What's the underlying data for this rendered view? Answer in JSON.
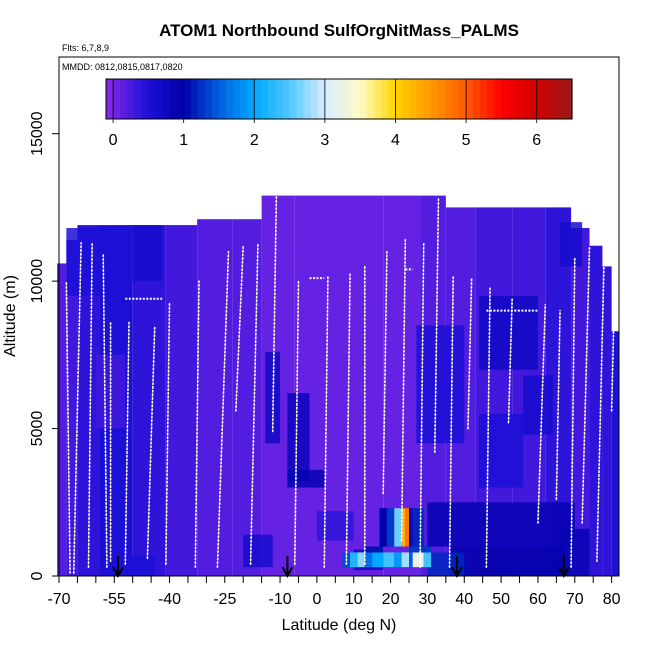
{
  "chart_data": {
    "type": "heatmap",
    "title": "ATOM1 Northbound SulfOrgNitMass_PALMS",
    "flights_note": "Flts: 6,7,8,9",
    "dates_note": "MMDD: 0812,0815,0817,0820",
    "xlabel": "Latitude (deg N)",
    "ylabel": "Altitude (m)",
    "xlim": [
      -70,
      82
    ],
    "ylim": [
      0,
      17600
    ],
    "x_ticks": [
      -70,
      -55,
      -40,
      -25,
      -10,
      0,
      10,
      20,
      30,
      40,
      50,
      60,
      70,
      80
    ],
    "x_ticks_unlabeled": [
      -65,
      -60,
      -50,
      -45,
      -35,
      -30,
      -20,
      -15,
      -5,
      5,
      15,
      25,
      35,
      45,
      55,
      65,
      75
    ],
    "y_ticks": [
      0,
      5000,
      10000,
      15000
    ],
    "colorbar": {
      "ticks": [
        0,
        1,
        2,
        3,
        4,
        5,
        6
      ],
      "range": [
        -0.1,
        6.5
      ],
      "stops": [
        {
          "v": -0.1,
          "c": "#8a2be8"
        },
        {
          "v": 0.5,
          "c": "#1c0fd6"
        },
        {
          "v": 1.0,
          "c": "#0000a8"
        },
        {
          "v": 1.5,
          "c": "#0060e0"
        },
        {
          "v": 2.0,
          "c": "#00a8ff"
        },
        {
          "v": 2.5,
          "c": "#50c8ff"
        },
        {
          "v": 3.0,
          "c": "#d8ecff"
        },
        {
          "v": 3.5,
          "c": "#fffcc8"
        },
        {
          "v": 4.0,
          "c": "#ffd400"
        },
        {
          "v": 4.5,
          "c": "#ff9800"
        },
        {
          "v": 5.0,
          "c": "#ff5a00"
        },
        {
          "v": 5.5,
          "c": "#ff0000"
        },
        {
          "v": 6.0,
          "c": "#d00000"
        },
        {
          "v": 6.5,
          "c": "#9a1a1a"
        }
      ]
    },
    "profile_tops": [
      {
        "lat": -69,
        "top": 10600,
        "v": 0.2
      },
      {
        "lat": -67,
        "top": 11400,
        "v": 0.3
      },
      {
        "lat": -63,
        "top": 11900,
        "v": 0.4
      },
      {
        "lat": -55,
        "top": 11900,
        "v": 0.5
      },
      {
        "lat": -45,
        "top": 11900,
        "v": 0.4
      },
      {
        "lat": -37,
        "top": 11900,
        "v": 0.3
      },
      {
        "lat": -28,
        "top": 12100,
        "v": 0.2
      },
      {
        "lat": -18,
        "top": 12100,
        "v": 0.2
      },
      {
        "lat": -12,
        "top": 12900,
        "v": 0.1
      },
      {
        "lat": 0,
        "top": 12900,
        "v": 0.1
      },
      {
        "lat": 12,
        "top": 12900,
        "v": 0.1
      },
      {
        "lat": 24,
        "top": 12900,
        "v": 0.1
      },
      {
        "lat": 32,
        "top": 12900,
        "v": 0.2
      },
      {
        "lat": 38,
        "top": 12500,
        "v": 0.2
      },
      {
        "lat": 48,
        "top": 12500,
        "v": 0.3
      },
      {
        "lat": 58,
        "top": 12500,
        "v": 0.3
      },
      {
        "lat": 66,
        "top": 12500,
        "v": 0.4
      },
      {
        "lat": 72,
        "top": 11800,
        "v": 0.3
      },
      {
        "lat": 76,
        "top": 11200,
        "v": 0.4
      },
      {
        "lat": 79,
        "top": 10500,
        "v": 0.4
      },
      {
        "lat": 81,
        "top": 8300,
        "v": 0.5
      }
    ],
    "patches": [
      {
        "lat0": -68,
        "lat1": -56,
        "alt0": 9500,
        "alt1": 11800,
        "v": 0.5
      },
      {
        "lat0": -50,
        "lat1": -42,
        "alt0": 10000,
        "alt1": 11900,
        "v": 0.6
      },
      {
        "lat0": -60,
        "lat1": -52,
        "alt0": 5000,
        "alt1": 7500,
        "v": 0.3
      },
      {
        "lat0": -14,
        "lat1": -10,
        "alt0": 4500,
        "alt1": 7600,
        "v": 0.7
      },
      {
        "lat0": -8,
        "lat1": -2,
        "alt0": 3200,
        "alt1": 6200,
        "v": 0.8
      },
      {
        "lat0": -8,
        "lat1": 2,
        "alt0": 3000,
        "alt1": 3600,
        "v": 0.9
      },
      {
        "lat0": 27,
        "lat1": 40,
        "alt0": 4500,
        "alt1": 8500,
        "v": 0.5
      },
      {
        "lat0": 44,
        "lat1": 60,
        "alt0": 7000,
        "alt1": 9500,
        "v": 0.7
      },
      {
        "lat0": 44,
        "lat1": 56,
        "alt0": 3000,
        "alt1": 5500,
        "v": 0.5
      },
      {
        "lat0": 56,
        "lat1": 64,
        "alt0": 4800,
        "alt1": 6800,
        "v": 0.6
      },
      {
        "lat0": 66,
        "lat1": 72,
        "alt0": 10500,
        "alt1": 12000,
        "v": 0.6
      },
      {
        "lat0": 30,
        "lat1": 70,
        "alt0": 1000,
        "alt1": 2500,
        "v": 0.9
      },
      {
        "lat0": 36,
        "lat1": 68,
        "alt0": 0,
        "alt1": 1000,
        "v": 1.0
      },
      {
        "lat0": 66,
        "lat1": 74,
        "alt0": 0,
        "alt1": 1600,
        "v": 0.9
      },
      {
        "lat0": -52,
        "lat1": -44,
        "alt0": 0,
        "alt1": 700,
        "v": 0.5
      },
      {
        "lat0": -20,
        "lat1": -12,
        "alt0": 300,
        "alt1": 1400,
        "v": 0.6
      },
      {
        "lat0": 10,
        "lat1": 18,
        "alt0": 200,
        "alt1": 900,
        "v": 0.7
      },
      {
        "lat0": 0,
        "lat1": 10,
        "alt0": 1200,
        "alt1": 2200,
        "v": 0.4
      },
      {
        "lat0": 30,
        "lat1": 40,
        "alt0": 0,
        "alt1": 800,
        "v": 1.2
      }
    ],
    "hotspot": [
      {
        "lat0": 17,
        "lat1": 19,
        "alt0": 1000,
        "alt1": 2300,
        "v": 1.0
      },
      {
        "lat0": 19,
        "lat1": 21,
        "alt0": 1000,
        "alt1": 2300,
        "v": 1.3
      },
      {
        "lat0": 21,
        "lat1": 23,
        "alt0": 1000,
        "alt1": 2300,
        "v": 2.6
      },
      {
        "lat0": 23,
        "lat1": 24,
        "alt0": 1000,
        "alt1": 2300,
        "v": 4.3
      },
      {
        "lat0": 24,
        "lat1": 25,
        "alt0": 1000,
        "alt1": 2300,
        "v": 4.8
      },
      {
        "lat0": 25,
        "lat1": 26,
        "alt0": 1000,
        "alt1": 2300,
        "v": 0.8
      },
      {
        "lat0": 26,
        "lat1": 29,
        "alt0": 1000,
        "alt1": 2300,
        "v": 1.2
      },
      {
        "lat0": 7,
        "lat1": 9,
        "alt0": 300,
        "alt1": 800,
        "v": 1.4
      },
      {
        "lat0": 9,
        "lat1": 11,
        "alt0": 300,
        "alt1": 800,
        "v": 2.2
      },
      {
        "lat0": 11,
        "lat1": 13,
        "alt0": 300,
        "alt1": 800,
        "v": 2.7
      },
      {
        "lat0": 13,
        "lat1": 15,
        "alt0": 300,
        "alt1": 800,
        "v": 1.6
      },
      {
        "lat0": 15,
        "lat1": 18,
        "alt0": 300,
        "alt1": 800,
        "v": 2.0
      },
      {
        "lat0": 18,
        "lat1": 21,
        "alt0": 300,
        "alt1": 800,
        "v": 2.4
      },
      {
        "lat0": 21,
        "lat1": 23,
        "alt0": 300,
        "alt1": 800,
        "v": 1.9
      },
      {
        "lat0": 23,
        "lat1": 25,
        "alt0": 300,
        "alt1": 800,
        "v": 2.8
      },
      {
        "lat0": 25,
        "lat1": 26,
        "alt0": 300,
        "alt1": 800,
        "v": 1.5
      },
      {
        "lat0": 26,
        "lat1": 29,
        "alt0": 300,
        "alt1": 800,
        "v": 3.2
      },
      {
        "lat0": 29,
        "lat1": 31,
        "alt0": 300,
        "alt1": 800,
        "v": 2.4
      },
      {
        "lat0": 13,
        "lat1": 18,
        "alt0": 800,
        "alt1": 1000,
        "v": 1.1
      },
      {
        "lat0": 25,
        "lat1": 31,
        "alt0": 800,
        "alt1": 1000,
        "v": 1.3
      }
    ],
    "flight_tracks": [
      {
        "lat_bottom": -67,
        "lat_top": -68,
        "alt_bottom": 100,
        "alt_top": 10000
      },
      {
        "lat_bottom": -66,
        "lat_top": -64,
        "alt_bottom": 100,
        "alt_top": 11300
      },
      {
        "lat_bottom": -62,
        "lat_top": -61,
        "alt_bottom": 300,
        "alt_top": 11300
      },
      {
        "lat_bottom": -57,
        "lat_top": -58,
        "alt_bottom": 300,
        "alt_top": 10900
      },
      {
        "lat_bottom": -56,
        "lat_top": -56,
        "alt_bottom": 500,
        "alt_top": 8600
      },
      {
        "lat_bottom": -52,
        "lat_top": -51,
        "alt_bottom": 400,
        "alt_top": 8600
      },
      {
        "lat_bottom": -46,
        "lat_top": -44,
        "alt_bottom": 600,
        "alt_top": 8500
      },
      {
        "lat_bottom": -41,
        "lat_top": -40,
        "alt_bottom": 400,
        "alt_top": 9300
      },
      {
        "lat_bottom": -33,
        "lat_top": -32,
        "alt_bottom": 300,
        "alt_top": 10000
      },
      {
        "lat_bottom": -27,
        "lat_top": -24,
        "alt_bottom": 300,
        "alt_top": 11000
      },
      {
        "lat_bottom": -22,
        "lat_top": -20,
        "alt_bottom": 5600,
        "alt_top": 11200
      },
      {
        "lat_bottom": -18,
        "lat_top": -16,
        "alt_bottom": 400,
        "alt_top": 11300
      },
      {
        "lat_bottom": -12,
        "lat_top": -11,
        "alt_bottom": 4900,
        "alt_top": 12900
      },
      {
        "lat_bottom": -6,
        "lat_top": -5,
        "alt_bottom": 400,
        "alt_top": 10000
      },
      {
        "lat_bottom": 2,
        "lat_top": 3,
        "alt_bottom": 300,
        "alt_top": 10200
      },
      {
        "lat_bottom": 8,
        "lat_top": 9,
        "alt_bottom": 400,
        "alt_top": 10300
      },
      {
        "lat_bottom": 13,
        "lat_top": 13,
        "alt_bottom": 400,
        "alt_top": 10500
      },
      {
        "lat_bottom": 18,
        "lat_top": 19,
        "alt_bottom": 2800,
        "alt_top": 11000
      },
      {
        "lat_bottom": 23,
        "lat_top": 24,
        "alt_bottom": 1200,
        "alt_top": 11400
      },
      {
        "lat_bottom": 28,
        "lat_top": 29,
        "alt_bottom": 300,
        "alt_top": 11300
      },
      {
        "lat_bottom": 32,
        "lat_top": 33,
        "alt_bottom": 4200,
        "alt_top": 12800
      },
      {
        "lat_bottom": 36,
        "lat_top": 37,
        "alt_bottom": 300,
        "alt_top": 10200
      },
      {
        "lat_bottom": 41,
        "lat_top": 42,
        "alt_bottom": 5000,
        "alt_top": 10100
      },
      {
        "lat_bottom": 46,
        "lat_top": 47,
        "alt_bottom": 300,
        "alt_top": 9800
      },
      {
        "lat_bottom": 52,
        "lat_top": 53,
        "alt_bottom": 5200,
        "alt_top": 9400
      },
      {
        "lat_bottom": 60,
        "lat_top": 62,
        "alt_bottom": 1800,
        "alt_top": 9200
      },
      {
        "lat_bottom": 65,
        "lat_top": 66,
        "alt_bottom": 2600,
        "alt_top": 9000
      },
      {
        "lat_bottom": 69,
        "lat_top": 70,
        "alt_bottom": 300,
        "alt_top": 10800
      },
      {
        "lat_bottom": 72,
        "lat_top": 74,
        "alt_bottom": 1800,
        "alt_top": 11200
      },
      {
        "lat_bottom": 76,
        "lat_top": 78,
        "alt_bottom": 500,
        "alt_top": 11000
      },
      {
        "lat_bottom": 80,
        "lat_top": 81,
        "alt_bottom": 5600,
        "alt_top": 10800
      }
    ],
    "level_legs": [
      {
        "lat0": -52,
        "lat1": -42,
        "alt": 9400
      },
      {
        "lat0": 46,
        "lat1": 60,
        "alt": 9000
      },
      {
        "lat0": -2,
        "lat1": 2,
        "alt": 10100
      },
      {
        "lat0": 24,
        "lat1": 26,
        "alt": 10400
      }
    ],
    "arrows_lat": [
      -54,
      -8,
      38,
      67
    ]
  }
}
